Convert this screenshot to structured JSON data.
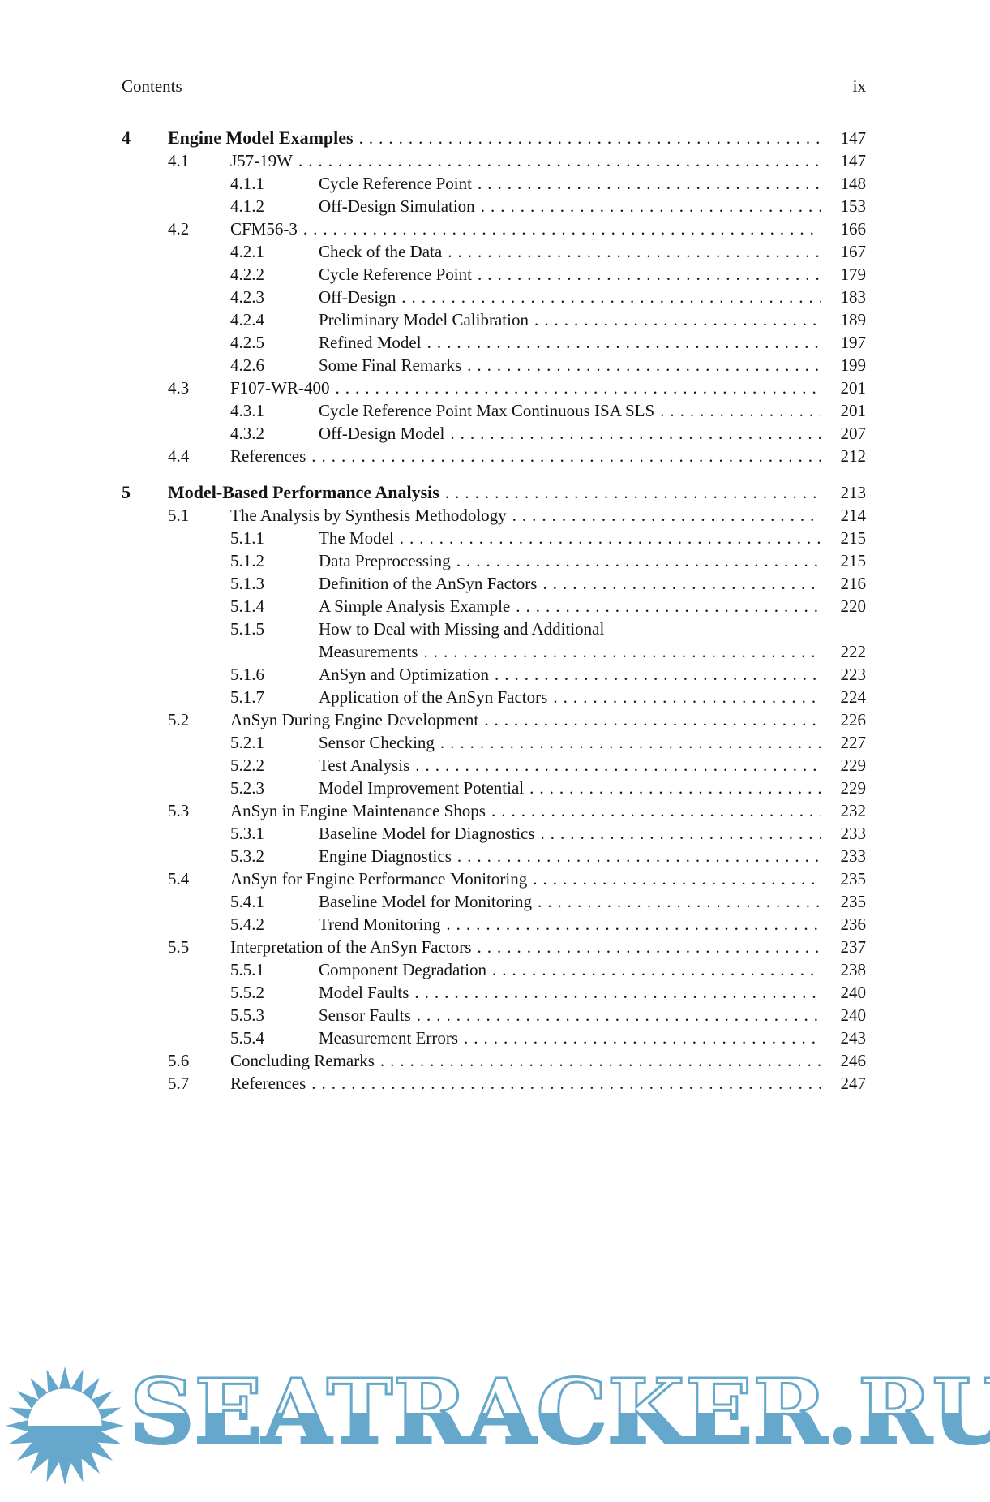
{
  "page": {
    "header_left": "Contents",
    "header_right": "ix"
  },
  "toc": [
    {
      "n": "4",
      "t": "Engine Model Examples",
      "p": "147",
      "level": 0,
      "bold": true
    },
    {
      "n": "4.1",
      "t": "J57-19W",
      "p": "147",
      "level": 1
    },
    {
      "n": "4.1.1",
      "t": "Cycle Reference Point",
      "p": "148",
      "level": 2
    },
    {
      "n": "4.1.2",
      "t": "Off-Design Simulation",
      "p": "153",
      "level": 2
    },
    {
      "n": "4.2",
      "t": "CFM56-3",
      "p": "166",
      "level": 1
    },
    {
      "n": "4.2.1",
      "t": "Check of the Data",
      "p": "167",
      "level": 2
    },
    {
      "n": "4.2.2",
      "t": "Cycle Reference Point",
      "p": "179",
      "level": 2
    },
    {
      "n": "4.2.3",
      "t": "Off-Design",
      "p": "183",
      "level": 2
    },
    {
      "n": "4.2.4",
      "t": "Preliminary Model Calibration",
      "p": "189",
      "level": 2
    },
    {
      "n": "4.2.5",
      "t": "Refined Model",
      "p": "197",
      "level": 2
    },
    {
      "n": "4.2.6",
      "t": "Some Final Remarks",
      "p": "199",
      "level": 2
    },
    {
      "n": "4.3",
      "t": "F107-WR-400",
      "p": "201",
      "level": 1
    },
    {
      "n": "4.3.1",
      "t": "Cycle Reference Point Max Continuous ISA SLS",
      "p": "201",
      "level": 2
    },
    {
      "n": "4.3.2",
      "t": "Off-Design Model",
      "p": "207",
      "level": 2
    },
    {
      "n": "4.4",
      "t": "References",
      "p": "212",
      "level": 1
    },
    {
      "n": "5",
      "t": "Model-Based Performance Analysis",
      "p": "213",
      "level": 0,
      "bold": true,
      "gap_before": true
    },
    {
      "n": "5.1",
      "t": "The Analysis by Synthesis Methodology",
      "p": "214",
      "level": 1
    },
    {
      "n": "5.1.1",
      "t": "The Model",
      "p": "215",
      "level": 2
    },
    {
      "n": "5.1.2",
      "t": "Data Preprocessing",
      "p": "215",
      "level": 2
    },
    {
      "n": "5.1.3",
      "t": "Definition of the AnSyn Factors",
      "p": "216",
      "level": 2
    },
    {
      "n": "5.1.4",
      "t": "A Simple Analysis Example",
      "p": "220",
      "level": 2
    },
    {
      "n": "5.1.5",
      "t": "How to Deal with Missing and Additional",
      "t2": "Measurements",
      "p": "222",
      "level": 2
    },
    {
      "n": "5.1.6",
      "t": "AnSyn and Optimization",
      "p": "223",
      "level": 2
    },
    {
      "n": "5.1.7",
      "t": "Application of the AnSyn Factors",
      "p": "224",
      "level": 2
    },
    {
      "n": "5.2",
      "t": "AnSyn During Engine Development",
      "p": "226",
      "level": 1
    },
    {
      "n": "5.2.1",
      "t": "Sensor Checking",
      "p": "227",
      "level": 2
    },
    {
      "n": "5.2.2",
      "t": "Test Analysis",
      "p": "229",
      "level": 2
    },
    {
      "n": "5.2.3",
      "t": "Model Improvement Potential",
      "p": "229",
      "level": 2
    },
    {
      "n": "5.3",
      "t": "AnSyn in Engine Maintenance Shops",
      "p": "232",
      "level": 1
    },
    {
      "n": "5.3.1",
      "t": "Baseline Model for Diagnostics",
      "p": "233",
      "level": 2
    },
    {
      "n": "5.3.2",
      "t": "Engine Diagnostics",
      "p": "233",
      "level": 2
    },
    {
      "n": "5.4",
      "t": "AnSyn for Engine Performance Monitoring",
      "p": "235",
      "level": 1
    },
    {
      "n": "5.4.1",
      "t": "Baseline Model for Monitoring",
      "p": "235",
      "level": 2
    },
    {
      "n": "5.4.2",
      "t": "Trend Monitoring",
      "p": "236",
      "level": 2
    },
    {
      "n": "5.5",
      "t": "Interpretation of the AnSyn Factors",
      "p": "237",
      "level": 1
    },
    {
      "n": "5.5.1",
      "t": "Component Degradation",
      "p": "238",
      "level": 2
    },
    {
      "n": "5.5.2",
      "t": "Model Faults",
      "p": "240",
      "level": 2
    },
    {
      "n": "5.5.3",
      "t": "Sensor Faults",
      "p": "240",
      "level": 2
    },
    {
      "n": "5.5.4",
      "t": "Measurement Errors",
      "p": "243",
      "level": 2
    },
    {
      "n": "5.6",
      "t": "Concluding Remarks",
      "p": "246",
      "level": 1
    },
    {
      "n": "5.7",
      "t": "References",
      "p": "247",
      "level": 1
    }
  ],
  "watermark": {
    "text": "SEATRACKER.RU",
    "color": "#66a7cc"
  }
}
